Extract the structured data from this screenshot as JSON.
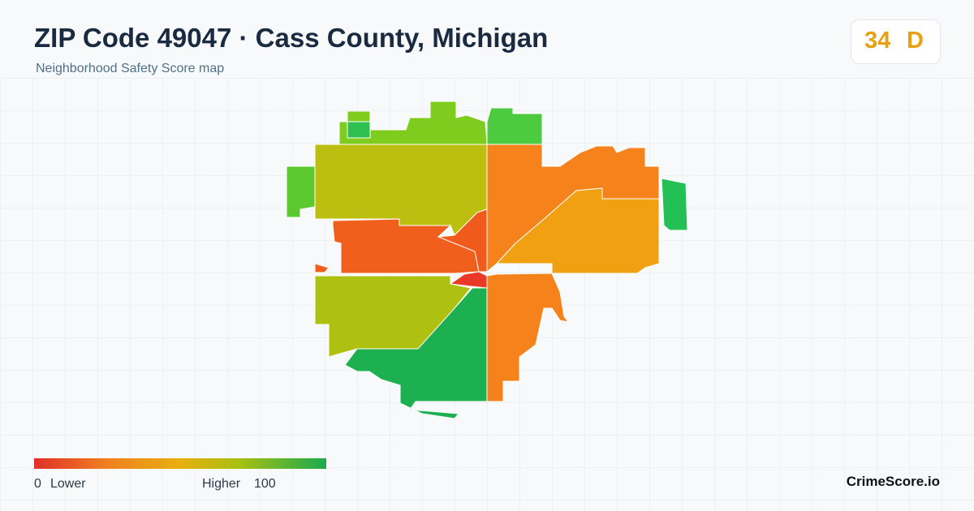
{
  "header": {
    "title": "ZIP Code 49047 · Cass County, Michigan",
    "subtitle": "Neighborhood Safety Score map"
  },
  "badge": {
    "score": "34",
    "grade": "D"
  },
  "legend": {
    "min": "0",
    "min_label": "Lower",
    "max_label": "Higher",
    "max": "100"
  },
  "footer": {
    "brand": "CrimeScore.io"
  }
}
